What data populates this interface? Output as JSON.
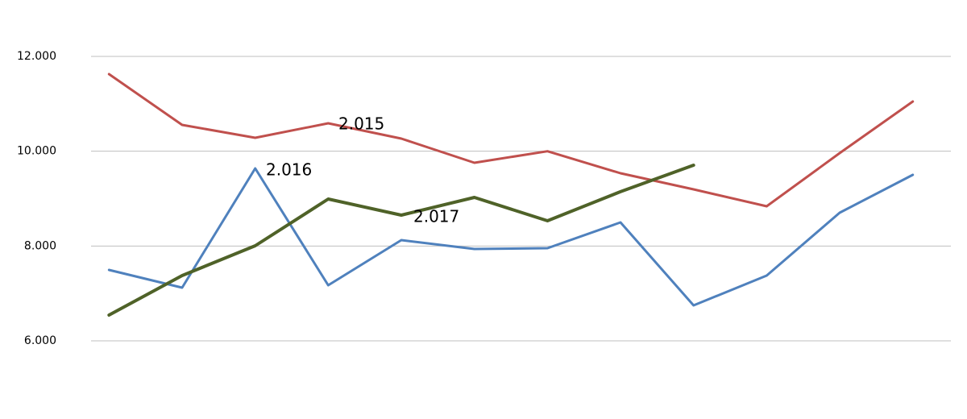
{
  "chart_data": {
    "type": "line",
    "categories": [
      null,
      null,
      null,
      null,
      null,
      null,
      null,
      null,
      null,
      null,
      null,
      null
    ],
    "series": [
      {
        "name": "2.015",
        "color": "#c0504d",
        "values": [
          11626,
          10555,
          10283,
          10589,
          10266,
          9757,
          10000,
          9536,
          9196,
          8839,
          9960,
          11048
        ]
      },
      {
        "name": "2.016",
        "color": "#4f81bd",
        "values": [
          7496,
          7122,
          9637,
          7173,
          8125,
          7938,
          7955,
          8499,
          6748,
          7377,
          8703,
          9501
        ]
      },
      {
        "name": "2.017",
        "color": "#4f6228",
        "values": [
          6544,
          7377,
          8006,
          8992,
          8652,
          9026,
          8533,
          9146,
          9705,
          null,
          null,
          null
        ]
      }
    ],
    "ylim": [
      6000,
      12000
    ],
    "yticks": [
      {
        "value": 6000,
        "label": "6.000"
      },
      {
        "value": 8000,
        "label": "8.000"
      },
      {
        "value": 10000,
        "label": "10.000"
      },
      {
        "value": 12000,
        "label": "12.000"
      }
    ],
    "grid": true
  }
}
